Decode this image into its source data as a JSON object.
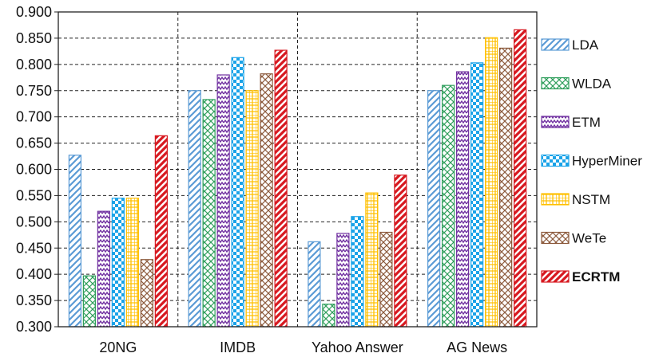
{
  "chart_data": {
    "type": "bar",
    "categories": [
      "20NG",
      "IMDB",
      "Yahoo Answer",
      "AG News"
    ],
    "ylim": [
      0.3,
      0.9
    ],
    "yticks": [
      "0.300",
      "0.350",
      "0.400",
      "0.450",
      "0.500",
      "0.550",
      "0.600",
      "0.650",
      "0.700",
      "0.750",
      "0.800",
      "0.850",
      "0.900"
    ],
    "grid": true,
    "legend_position": "right",
    "series": [
      {
        "name": "LDA",
        "values": [
          0.627,
          0.75,
          0.462,
          0.75
        ],
        "color": "#5b9bd5",
        "pattern": "diag-stripe",
        "bold": false
      },
      {
        "name": "WLDA",
        "values": [
          0.397,
          0.733,
          0.343,
          0.76
        ],
        "color": "#2e9e5b",
        "pattern": "crosshatch",
        "bold": false
      },
      {
        "name": "ETM",
        "values": [
          0.52,
          0.78,
          0.478,
          0.786
        ],
        "color": "#7030a0",
        "pattern": "zigzag",
        "bold": false
      },
      {
        "name": "HyperMiner",
        "values": [
          0.545,
          0.813,
          0.51,
          0.803
        ],
        "color": "#1aa3e8",
        "pattern": "checker",
        "bold": false
      },
      {
        "name": "NSTM",
        "values": [
          0.545,
          0.75,
          0.555,
          0.851
        ],
        "color": "#ffc000",
        "pattern": "grid",
        "bold": false
      },
      {
        "name": "WeTe",
        "values": [
          0.428,
          0.782,
          0.48,
          0.831
        ],
        "color": "#8c5a3c",
        "pattern": "crosshatch",
        "bold": false
      },
      {
        "name": "ECRTM",
        "values": [
          0.664,
          0.827,
          0.589,
          0.866
        ],
        "color": "#d71920",
        "pattern": "diag-stripe-thick",
        "bold": true
      }
    ]
  }
}
